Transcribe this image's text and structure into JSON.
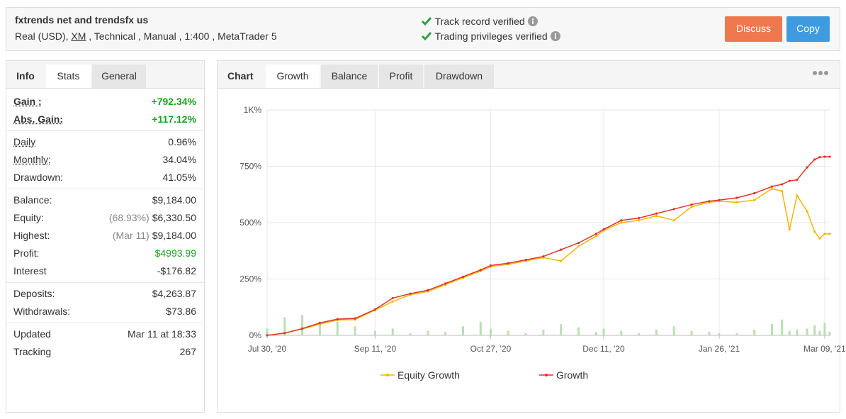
{
  "header": {
    "title": "fxtrends net and trendsfx us",
    "subtitle": [
      "Real (USD), ",
      "XM",
      " , Technical , Manual , 1:400 , MetaTrader 5"
    ],
    "verified": [
      "Track record verified",
      "Trading privileges verified"
    ],
    "buttons": [
      "Discuss",
      "Copy"
    ]
  },
  "left_tabs": {
    "items": [
      "Info",
      "Stats",
      "General"
    ],
    "active": 1
  },
  "stats": [
    [
      {
        "label": "Gain :",
        "value": "+792.34%",
        "color": "#1aa320"
      },
      {
        "label": "Abs. Gain:",
        "value": "+117.12%",
        "color": "#1aa320"
      }
    ],
    [
      {
        "label": "Daily",
        "value": "0.96%"
      },
      {
        "label": "Monthly:",
        "value": "34.04%"
      },
      {
        "label": "Drawdown:",
        "value": "41.05%"
      }
    ],
    [
      {
        "label": "Balance:",
        "value": "$9,184.00"
      },
      {
        "label": "Equity:",
        "note": "(68.93%)",
        "value": "$6,330.50"
      },
      {
        "label": "Highest:",
        "note": "(Mar 11)",
        "value": "$9,184.00"
      },
      {
        "label": "Profit:",
        "value": "$4993.99",
        "color": "#1aa320"
      },
      {
        "label": "Interest",
        "value": "-$176.82"
      }
    ],
    [
      {
        "label": "Deposits:",
        "value": "$4,263.87"
      },
      {
        "label": "Withdrawals:",
        "value": "$73.86"
      }
    ],
    [
      {
        "label": "Updated",
        "value": "Mar 11 at 18:33"
      },
      {
        "label": "Tracking",
        "value": "267"
      }
    ]
  ],
  "chart_tabs": {
    "label": "Chart",
    "items": [
      "Growth",
      "Balance",
      "Profit",
      "Drawdown"
    ],
    "active": 0
  },
  "chart_data": {
    "type": "line",
    "x": [
      "2020-07-30",
      "2020-08-06",
      "2020-08-13",
      "2020-08-20",
      "2020-08-27",
      "2020-09-03",
      "2020-09-11",
      "2020-09-18",
      "2020-09-25",
      "2020-10-02",
      "2020-10-09",
      "2020-10-16",
      "2020-10-23",
      "2020-10-27",
      "2020-11-03",
      "2020-11-10",
      "2020-11-17",
      "2020-11-24",
      "2020-12-01",
      "2020-12-08",
      "2020-12-11",
      "2020-12-18",
      "2020-12-25",
      "2021-01-01",
      "2021-01-08",
      "2021-01-15",
      "2021-01-22",
      "2021-01-26",
      "2021-02-02",
      "2021-02-09",
      "2021-02-16",
      "2021-02-20",
      "2021-02-23",
      "2021-02-26",
      "2021-03-02",
      "2021-03-05",
      "2021-03-07",
      "2021-03-09",
      "2021-03-11"
    ],
    "series": [
      {
        "name": "Equity Growth",
        "color": "#f2b705",
        "values": [
          0,
          10,
          28,
          50,
          68,
          70,
          112,
          150,
          180,
          195,
          225,
          255,
          285,
          305,
          315,
          330,
          345,
          330,
          395,
          440,
          465,
          500,
          510,
          530,
          510,
          570,
          590,
          595,
          590,
          600,
          650,
          640,
          470,
          620,
          550,
          460,
          430,
          450,
          450
        ]
      },
      {
        "name": "Growth",
        "color": "#e0332a",
        "values": [
          0,
          10,
          30,
          55,
          72,
          75,
          115,
          165,
          185,
          200,
          230,
          260,
          290,
          310,
          320,
          335,
          350,
          380,
          410,
          450,
          470,
          510,
          520,
          540,
          560,
          580,
          595,
          600,
          610,
          630,
          660,
          670,
          685,
          690,
          745,
          780,
          790,
          792,
          792
        ]
      },
      {
        "type": "bar",
        "color": "#b9dfb1",
        "values": [
          30,
          80,
          90,
          50,
          60,
          40,
          20,
          30,
          10,
          20,
          15,
          40,
          60,
          30,
          20,
          10,
          25,
          50,
          35,
          15,
          30,
          20,
          10,
          25,
          40,
          20,
          15,
          10,
          10,
          25,
          50,
          70,
          20,
          25,
          30,
          45,
          20,
          55,
          15
        ]
      }
    ],
    "xlim": [
      "2020-07-30",
      "2021-03-11"
    ],
    "xticks": [
      {
        "value": "2020-07-30",
        "label": "Jul 30, '20"
      },
      {
        "value": "2020-09-11",
        "label": "Sep 11, '20"
      },
      {
        "value": "2020-10-27",
        "label": "Oct 27, '20"
      },
      {
        "value": "2020-12-11",
        "label": "Dec 11, '20"
      },
      {
        "value": "2021-01-26",
        "label": "Jan 26, '21"
      },
      {
        "value": "2021-03-09",
        "label": "Mar 09, '21"
      }
    ],
    "ylim": [
      0,
      1000
    ],
    "yticks": [
      {
        "value": 0,
        "label": "0%"
      },
      {
        "value": 250,
        "label": "250%"
      },
      {
        "value": 500,
        "label": "500%"
      },
      {
        "value": 750,
        "label": "750%"
      },
      {
        "value": 1000,
        "label": "1K%"
      }
    ],
    "grid": true
  }
}
